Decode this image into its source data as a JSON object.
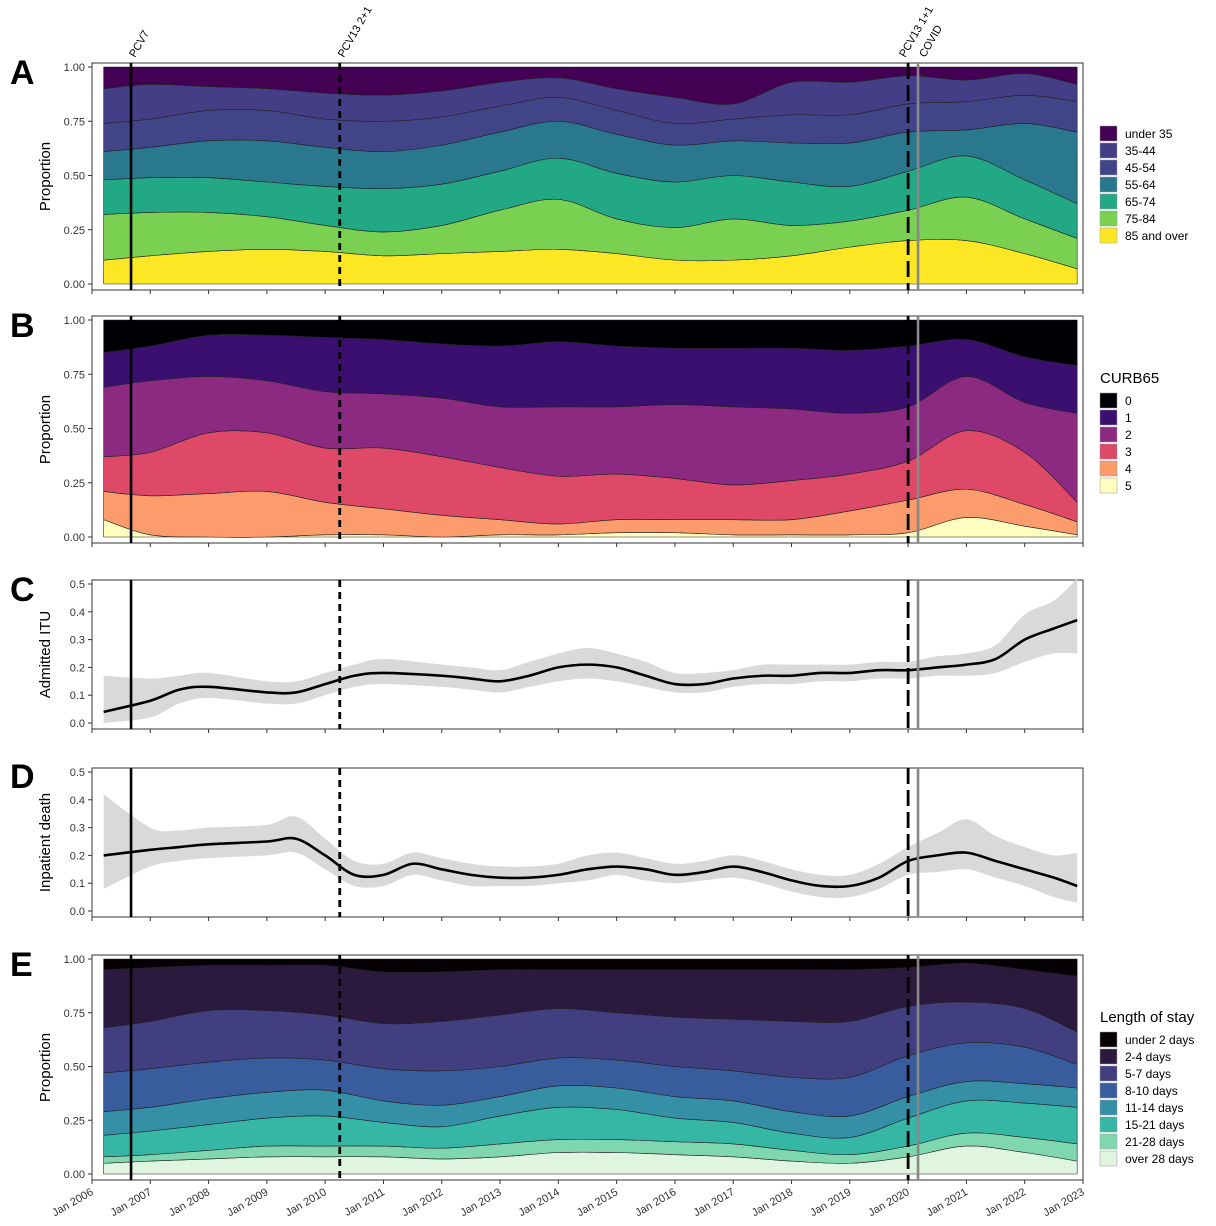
{
  "events": [
    {
      "name": "PCV7",
      "labels": [
        "PCV7"
      ],
      "x": 2006.67,
      "style": "solid",
      "color": "#000000"
    },
    {
      "name": "PCV13 2+1",
      "labels": [
        "PCV13 2+1"
      ],
      "x": 2010.25,
      "style": "dash-short",
      "color": "#000000"
    },
    {
      "name": "PCV13 1+1",
      "labels": [
        "PCV13 1+1"
      ],
      "x": 2020.0,
      "style": "dash-long",
      "color": "#000000"
    },
    {
      "name": "COVID",
      "labels": [
        "COVID"
      ],
      "x": 2020.17,
      "style": "solid",
      "color": "#888888"
    }
  ],
  "x_axis": {
    "range": [
      2006.0,
      2023.0
    ],
    "tick_labels": [
      "Jan 2006",
      "Jan 2007",
      "Jan 2008",
      "Jan 2009",
      "Jan 2010",
      "Jan 2011",
      "Jan 2012",
      "Jan 2013",
      "Jan 2014",
      "Jan 2015",
      "Jan 2016",
      "Jan 2017",
      "Jan 2018",
      "Jan 2019",
      "Jan 2020",
      "Jan 2021",
      "Jan 2022",
      "Jan 2023"
    ],
    "tick_values": [
      2006,
      2007,
      2008,
      2009,
      2010,
      2011,
      2012,
      2013,
      2014,
      2015,
      2016,
      2017,
      2018,
      2019,
      2020,
      2021,
      2022,
      2023
    ]
  },
  "chart_data": [
    {
      "panel": "A",
      "type": "area",
      "stacked": true,
      "ylabel": "Proportion",
      "ylim": [
        0,
        1
      ],
      "yticks": [
        "0.00",
        "0.25",
        "0.50",
        "0.75",
        "1.00"
      ],
      "ytick_values": [
        0,
        0.25,
        0.5,
        0.75,
        1.0
      ],
      "legend_title": "",
      "legend_position": "right",
      "x": [
        2006.2,
        2007,
        2008,
        2009,
        2010,
        2011,
        2012,
        2013,
        2014,
        2015,
        2016,
        2017,
        2018,
        2019,
        2020,
        2021,
        2022,
        2022.9
      ],
      "series": [
        {
          "name": "85 and over",
          "color": "#FDE725",
          "values": [
            0.11,
            0.13,
            0.15,
            0.16,
            0.15,
            0.13,
            0.14,
            0.15,
            0.16,
            0.14,
            0.11,
            0.11,
            0.13,
            0.17,
            0.2,
            0.2,
            0.14,
            0.07
          ]
        },
        {
          "name": "75-84",
          "color": "#7AD151",
          "values": [
            0.21,
            0.2,
            0.18,
            0.15,
            0.12,
            0.11,
            0.13,
            0.19,
            0.23,
            0.16,
            0.15,
            0.19,
            0.14,
            0.12,
            0.14,
            0.2,
            0.16,
            0.14
          ]
        },
        {
          "name": "65-74",
          "color": "#22A884",
          "values": [
            0.16,
            0.16,
            0.16,
            0.16,
            0.18,
            0.2,
            0.19,
            0.18,
            0.19,
            0.21,
            0.21,
            0.2,
            0.2,
            0.16,
            0.18,
            0.19,
            0.18,
            0.16
          ]
        },
        {
          "name": "55-64",
          "color": "#2A788E",
          "values": [
            0.13,
            0.14,
            0.17,
            0.19,
            0.18,
            0.17,
            0.18,
            0.18,
            0.17,
            0.18,
            0.17,
            0.16,
            0.18,
            0.2,
            0.18,
            0.12,
            0.26,
            0.33
          ]
        },
        {
          "name": "45-54",
          "color": "#414487",
          "values": [
            0.13,
            0.13,
            0.14,
            0.14,
            0.13,
            0.14,
            0.13,
            0.12,
            0.11,
            0.11,
            0.1,
            0.1,
            0.13,
            0.13,
            0.13,
            0.13,
            0.13,
            0.14
          ]
        },
        {
          "name": "35-44",
          "color": "#433E85",
          "values": [
            0.16,
            0.16,
            0.11,
            0.1,
            0.12,
            0.12,
            0.12,
            0.11,
            0.09,
            0.1,
            0.12,
            0.07,
            0.15,
            0.15,
            0.13,
            0.1,
            0.1,
            0.08
          ]
        },
        {
          "name": "under 35",
          "color": "#440154",
          "values": [
            0.1,
            0.08,
            0.09,
            0.1,
            0.12,
            0.13,
            0.11,
            0.07,
            0.05,
            0.1,
            0.14,
            0.17,
            0.07,
            0.07,
            0.04,
            0.06,
            0.03,
            0.08
          ]
        }
      ]
    },
    {
      "panel": "B",
      "type": "area",
      "stacked": true,
      "ylabel": "Proportion",
      "ylim": [
        0,
        1
      ],
      "yticks": [
        "0.00",
        "0.25",
        "0.50",
        "0.75",
        "1.00"
      ],
      "ytick_values": [
        0,
        0.25,
        0.5,
        0.75,
        1.0
      ],
      "legend_title": "CURB65",
      "legend_position": "right",
      "x": [
        2006.2,
        2007,
        2008,
        2009,
        2010,
        2011,
        2012,
        2013,
        2014,
        2015,
        2016,
        2017,
        2018,
        2019,
        2020,
        2021,
        2022,
        2022.9
      ],
      "series": [
        {
          "name": "5",
          "color": "#FCFDBF",
          "values": [
            0.08,
            0.01,
            0.0,
            0.0,
            0.01,
            0.01,
            0.0,
            0.01,
            0.01,
            0.02,
            0.02,
            0.01,
            0.01,
            0.01,
            0.02,
            0.09,
            0.05,
            0.01
          ]
        },
        {
          "name": "4",
          "color": "#FC9B6B",
          "values": [
            0.13,
            0.18,
            0.2,
            0.21,
            0.15,
            0.12,
            0.1,
            0.07,
            0.05,
            0.06,
            0.06,
            0.07,
            0.07,
            0.11,
            0.15,
            0.13,
            0.1,
            0.06
          ]
        },
        {
          "name": "3",
          "color": "#DE4968",
          "values": [
            0.16,
            0.2,
            0.28,
            0.27,
            0.25,
            0.28,
            0.27,
            0.24,
            0.22,
            0.21,
            0.19,
            0.16,
            0.18,
            0.17,
            0.18,
            0.27,
            0.24,
            0.09
          ]
        },
        {
          "name": "2",
          "color": "#8C2981",
          "values": [
            0.32,
            0.33,
            0.26,
            0.24,
            0.26,
            0.25,
            0.27,
            0.28,
            0.32,
            0.31,
            0.34,
            0.36,
            0.33,
            0.28,
            0.25,
            0.25,
            0.23,
            0.41
          ]
        },
        {
          "name": "1",
          "color": "#3B0F70",
          "values": [
            0.16,
            0.16,
            0.19,
            0.21,
            0.25,
            0.25,
            0.25,
            0.28,
            0.3,
            0.28,
            0.26,
            0.27,
            0.28,
            0.29,
            0.28,
            0.17,
            0.21,
            0.22
          ]
        },
        {
          "name": "0",
          "color": "#000004",
          "values": [
            0.15,
            0.12,
            0.07,
            0.07,
            0.08,
            0.09,
            0.11,
            0.12,
            0.1,
            0.12,
            0.13,
            0.13,
            0.13,
            0.14,
            0.12,
            0.09,
            0.17,
            0.21
          ]
        }
      ]
    },
    {
      "panel": "C",
      "type": "line",
      "ylabel": "Admitted ITU",
      "ylim": [
        0,
        0.5
      ],
      "yticks": [
        "0.0",
        "0.1",
        "0.2",
        "0.3",
        "0.4",
        "0.5"
      ],
      "ytick_values": [
        0,
        0.1,
        0.2,
        0.3,
        0.4,
        0.5
      ],
      "x": [
        2006.2,
        2007,
        2007.5,
        2008,
        2009,
        2009.5,
        2010,
        2010.5,
        2011,
        2012,
        2012.5,
        2013,
        2013.5,
        2014,
        2014.5,
        2015,
        2015.5,
        2016,
        2016.5,
        2017,
        2017.5,
        2018,
        2018.5,
        2019,
        2019.5,
        2020,
        2020.5,
        2021,
        2021.5,
        2022,
        2022.5,
        2022.9
      ],
      "series": [
        {
          "name": "estimate",
          "color": "#000000",
          "values": [
            0.04,
            0.08,
            0.12,
            0.13,
            0.11,
            0.11,
            0.14,
            0.17,
            0.18,
            0.17,
            0.16,
            0.15,
            0.17,
            0.2,
            0.21,
            0.2,
            0.17,
            0.14,
            0.14,
            0.16,
            0.17,
            0.17,
            0.18,
            0.18,
            0.19,
            0.19,
            0.2,
            0.21,
            0.23,
            0.3,
            0.34,
            0.37
          ],
          "lower": [
            0.0,
            0.02,
            0.07,
            0.09,
            0.07,
            0.07,
            0.1,
            0.13,
            0.14,
            0.13,
            0.12,
            0.11,
            0.13,
            0.15,
            0.16,
            0.15,
            0.13,
            0.11,
            0.11,
            0.13,
            0.14,
            0.14,
            0.15,
            0.15,
            0.16,
            0.16,
            0.17,
            0.17,
            0.18,
            0.22,
            0.25,
            0.25
          ],
          "upper": [
            0.17,
            0.16,
            0.17,
            0.18,
            0.15,
            0.15,
            0.18,
            0.21,
            0.23,
            0.21,
            0.2,
            0.19,
            0.22,
            0.25,
            0.27,
            0.25,
            0.22,
            0.18,
            0.18,
            0.19,
            0.21,
            0.21,
            0.21,
            0.21,
            0.22,
            0.22,
            0.24,
            0.25,
            0.28,
            0.39,
            0.44,
            0.52
          ]
        }
      ]
    },
    {
      "panel": "D",
      "type": "line",
      "ylabel": "Inpatient death",
      "ylim": [
        0,
        0.5
      ],
      "yticks": [
        "0.0",
        "0.1",
        "0.2",
        "0.3",
        "0.4",
        "0.5"
      ],
      "ytick_values": [
        0,
        0.1,
        0.2,
        0.3,
        0.4,
        0.5
      ],
      "x": [
        2006.2,
        2007,
        2007.5,
        2008,
        2009,
        2009.5,
        2010,
        2010.5,
        2011,
        2011.5,
        2012,
        2012.5,
        2013,
        2013.5,
        2014,
        2014.5,
        2015,
        2015.5,
        2016,
        2016.5,
        2017,
        2017.5,
        2018,
        2018.5,
        2019,
        2019.5,
        2020,
        2020.5,
        2021,
        2021.5,
        2022,
        2022.5,
        2022.9
      ],
      "series": [
        {
          "name": "estimate",
          "color": "#000000",
          "values": [
            0.2,
            0.22,
            0.23,
            0.24,
            0.25,
            0.26,
            0.2,
            0.13,
            0.13,
            0.17,
            0.15,
            0.13,
            0.12,
            0.12,
            0.13,
            0.15,
            0.16,
            0.15,
            0.13,
            0.14,
            0.16,
            0.14,
            0.11,
            0.09,
            0.09,
            0.12,
            0.18,
            0.2,
            0.21,
            0.18,
            0.15,
            0.12,
            0.09
          ],
          "lower": [
            0.08,
            0.16,
            0.18,
            0.19,
            0.2,
            0.21,
            0.15,
            0.09,
            0.09,
            0.13,
            0.11,
            0.09,
            0.09,
            0.09,
            0.1,
            0.11,
            0.13,
            0.11,
            0.1,
            0.11,
            0.12,
            0.1,
            0.07,
            0.05,
            0.05,
            0.08,
            0.13,
            0.14,
            0.15,
            0.12,
            0.09,
            0.05,
            0.03
          ],
          "upper": [
            0.42,
            0.3,
            0.29,
            0.3,
            0.31,
            0.34,
            0.26,
            0.18,
            0.17,
            0.21,
            0.19,
            0.17,
            0.16,
            0.16,
            0.17,
            0.2,
            0.21,
            0.19,
            0.17,
            0.18,
            0.2,
            0.18,
            0.15,
            0.13,
            0.13,
            0.17,
            0.23,
            0.28,
            0.33,
            0.27,
            0.23,
            0.2,
            0.21
          ]
        }
      ]
    },
    {
      "panel": "E",
      "type": "area",
      "stacked": true,
      "ylabel": "Proportion",
      "ylim": [
        0,
        1
      ],
      "yticks": [
        "0.00",
        "0.25",
        "0.50",
        "0.75",
        "1.00"
      ],
      "ytick_values": [
        0,
        0.25,
        0.5,
        0.75,
        1.0
      ],
      "legend_title": "Length of stay",
      "legend_position": "right",
      "x": [
        2006.2,
        2007,
        2008,
        2009,
        2010,
        2011,
        2012,
        2013,
        2014,
        2015,
        2016,
        2017,
        2018,
        2019,
        2020,
        2021,
        2022,
        2022.9
      ],
      "series": [
        {
          "name": "over 28 days",
          "color": "#E0F5E0",
          "values": [
            0.05,
            0.06,
            0.07,
            0.08,
            0.08,
            0.08,
            0.07,
            0.08,
            0.1,
            0.1,
            0.09,
            0.08,
            0.06,
            0.05,
            0.08,
            0.13,
            0.1,
            0.06
          ]
        },
        {
          "name": "21-28 days",
          "color": "#7FD7AF",
          "values": [
            0.03,
            0.03,
            0.04,
            0.05,
            0.05,
            0.05,
            0.05,
            0.06,
            0.06,
            0.06,
            0.06,
            0.06,
            0.05,
            0.04,
            0.05,
            0.06,
            0.07,
            0.08
          ]
        },
        {
          "name": "15-21 days",
          "color": "#36B7A6",
          "values": [
            0.1,
            0.11,
            0.12,
            0.13,
            0.14,
            0.11,
            0.1,
            0.13,
            0.15,
            0.14,
            0.11,
            0.1,
            0.08,
            0.08,
            0.13,
            0.15,
            0.16,
            0.17
          ]
        },
        {
          "name": "11-14 days",
          "color": "#348FA7",
          "values": [
            0.11,
            0.11,
            0.12,
            0.12,
            0.12,
            0.1,
            0.1,
            0.09,
            0.1,
            0.1,
            0.1,
            0.1,
            0.1,
            0.1,
            0.1,
            0.09,
            0.09,
            0.09
          ]
        },
        {
          "name": "8-10 days",
          "color": "#395D9C",
          "values": [
            0.18,
            0.18,
            0.17,
            0.16,
            0.14,
            0.15,
            0.16,
            0.14,
            0.13,
            0.13,
            0.14,
            0.14,
            0.16,
            0.18,
            0.19,
            0.18,
            0.17,
            0.11
          ]
        },
        {
          "name": "5-7 days",
          "color": "#423F80",
          "values": [
            0.21,
            0.22,
            0.24,
            0.22,
            0.21,
            0.21,
            0.23,
            0.24,
            0.23,
            0.22,
            0.23,
            0.24,
            0.26,
            0.26,
            0.23,
            0.19,
            0.18,
            0.15
          ]
        },
        {
          "name": "2-4 days",
          "color": "#2B1A3D",
          "values": [
            0.27,
            0.25,
            0.21,
            0.21,
            0.23,
            0.24,
            0.23,
            0.21,
            0.18,
            0.2,
            0.22,
            0.23,
            0.24,
            0.24,
            0.18,
            0.18,
            0.18,
            0.26
          ]
        },
        {
          "name": "under 2 days",
          "color": "#050105",
          "values": [
            0.05,
            0.04,
            0.03,
            0.03,
            0.03,
            0.06,
            0.06,
            0.05,
            0.05,
            0.05,
            0.05,
            0.05,
            0.05,
            0.05,
            0.04,
            0.02,
            0.05,
            0.08
          ]
        }
      ]
    }
  ]
}
